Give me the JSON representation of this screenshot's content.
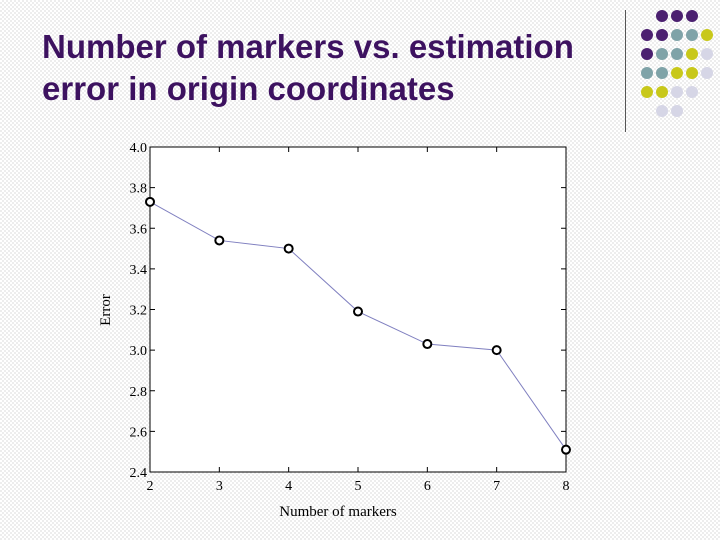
{
  "slide": {
    "title_line1": "Number of markers vs. estimation",
    "title_line2": "error in origin coordinates",
    "title_color": "#3D1260"
  },
  "decoration": {
    "dot_colors": {
      "purple": "#4B2070",
      "teal": "#7FA3A8",
      "olive": "#C8C81A",
      "lavender": "#D6D6E6"
    },
    "dot_rows": [
      [
        "",
        "purple",
        "purple",
        "purple",
        ""
      ],
      [
        "purple",
        "purple",
        "teal",
        "teal",
        "olive"
      ],
      [
        "purple",
        "teal",
        "teal",
        "olive",
        "lavender"
      ],
      [
        "teal",
        "teal",
        "olive",
        "olive",
        "lavender"
      ],
      [
        "olive",
        "olive",
        "lavender",
        "lavender",
        ""
      ],
      [
        "",
        "lavender",
        "lavender",
        "",
        ""
      ]
    ]
  },
  "chart_data": {
    "type": "line",
    "x": [
      2,
      3,
      4,
      5,
      6,
      7,
      8
    ],
    "y": [
      3.73,
      3.54,
      3.5,
      3.19,
      3.03,
      3.0,
      2.51
    ],
    "xlabel": "Number of markers",
    "ylabel": "Error",
    "xlim": [
      2,
      8
    ],
    "ylim": [
      2.4,
      4.0
    ],
    "xticks": [
      "2",
      "3",
      "4",
      "5",
      "6",
      "7",
      "8"
    ],
    "yticks": [
      "2.4",
      "2.6",
      "2.8",
      "3.0",
      "3.2",
      "3.4",
      "3.6",
      "3.8",
      "4.0"
    ],
    "grid": false,
    "line_color": "#8080C0",
    "marker": "open-circle"
  }
}
